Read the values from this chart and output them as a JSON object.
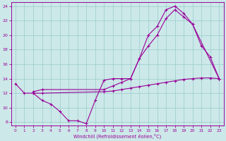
{
  "xlabel": "Windchill (Refroidissement éolien,°C)",
  "background_color": "#cce8e8",
  "grid_color": "#99cccc",
  "line_color": "#990099",
  "xlim": [
    -0.5,
    23.5
  ],
  "ylim": [
    7.5,
    24.5
  ],
  "yticks": [
    8,
    10,
    12,
    14,
    16,
    18,
    20,
    22,
    24
  ],
  "xticks": [
    0,
    1,
    2,
    3,
    4,
    5,
    6,
    7,
    8,
    9,
    10,
    11,
    12,
    13,
    14,
    15,
    16,
    17,
    18,
    19,
    20,
    21,
    22,
    23
  ],
  "line1_x": [
    0,
    1,
    2,
    3,
    4,
    5,
    6,
    7,
    8,
    9,
    10,
    11,
    12,
    13,
    14,
    15,
    16,
    17,
    18,
    19,
    20,
    23
  ],
  "line1_y": [
    13.3,
    12.0,
    12.0,
    11.0,
    10.5,
    9.5,
    8.2,
    8.2,
    7.8,
    11.0,
    13.8,
    14.0,
    14.0,
    14.0,
    16.8,
    20.0,
    21.2,
    23.5,
    24.0,
    23.0,
    21.5,
    14.0
  ],
  "line2_x": [
    2,
    3,
    10,
    11,
    12,
    13,
    14,
    15,
    16,
    17,
    18,
    19,
    20,
    21,
    22,
    23
  ],
  "line2_y": [
    12.0,
    12.0,
    12.2,
    12.3,
    12.5,
    12.7,
    12.9,
    13.1,
    13.3,
    13.5,
    13.7,
    13.9,
    14.0,
    14.1,
    14.1,
    14.0
  ],
  "line3_x": [
    2,
    3,
    10,
    11,
    12,
    13,
    14,
    15,
    16,
    17,
    18,
    19,
    20,
    21,
    22,
    23
  ],
  "line3_y": [
    12.2,
    12.5,
    12.5,
    13.0,
    13.5,
    14.0,
    16.8,
    18.5,
    20.0,
    22.3,
    23.5,
    22.5,
    21.5,
    18.5,
    17.0,
    14.0
  ]
}
